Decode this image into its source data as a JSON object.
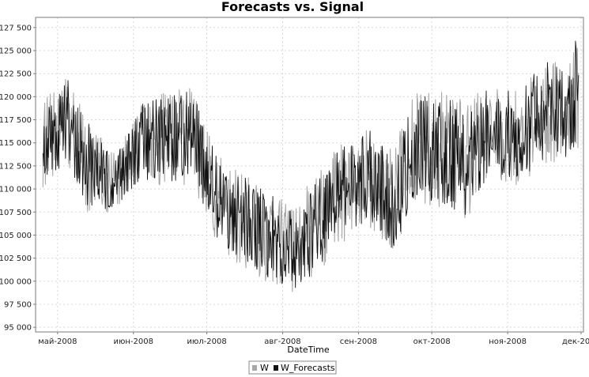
{
  "chart_data": {
    "type": "line",
    "title": "Forecasts vs. Signal",
    "xlabel": "DateTime",
    "ylabel": "",
    "x_ticks": [
      "май-2008",
      "июн-2008",
      "июл-2008",
      "авг-2008",
      "сен-2008",
      "окт-2008",
      "ноя-2008",
      "дек-2008"
    ],
    "xlim": [
      "2008-04-22",
      "2008-12-02"
    ],
    "y_ticks": [
      "95 000",
      "97 500",
      "100 000",
      "102 500",
      "105 000",
      "107 500",
      "110 000",
      "112 500",
      "115 000",
      "117 500",
      "120 000",
      "122 500",
      "125 000",
      "127 500"
    ],
    "ylim": [
      94500,
      128600
    ],
    "grid": true,
    "legend_position": "bottom-center",
    "series": [
      {
        "name": "W",
        "color": "#a8a8a8",
        "x": [
          "2008-04-25",
          "2008-05-05",
          "2008-05-15",
          "2008-05-25",
          "2008-06-05",
          "2008-06-15",
          "2008-06-25",
          "2008-07-05",
          "2008-07-15",
          "2008-07-25",
          "2008-08-05",
          "2008-08-15",
          "2008-08-25",
          "2008-09-05",
          "2008-09-15",
          "2008-09-25",
          "2008-10-05",
          "2008-10-15",
          "2008-10-25",
          "2008-11-05",
          "2008-11-15",
          "2008-11-25",
          "2008-11-30"
        ],
        "envelope_low": [
          110000,
          112500,
          106500,
          107500,
          110500,
          110000,
          110500,
          104000,
          101500,
          100000,
          98500,
          100500,
          104000,
          106000,
          103000,
          108500,
          108000,
          106500,
          111500,
          110000,
          112500,
          113000,
          114000
        ],
        "envelope_high": [
          119500,
          122500,
          117000,
          114500,
          120000,
          120500,
          121500,
          114000,
          112000,
          110500,
          108500,
          112000,
          115000,
          117000,
          114500,
          121000,
          120500,
          119500,
          121500,
          121000,
          124500,
          123500,
          126000
        ]
      },
      {
        "name": "W_Forecasts",
        "color": "#111111",
        "x": [
          "2008-04-25",
          "2008-05-05",
          "2008-05-15",
          "2008-05-25",
          "2008-06-05",
          "2008-06-15",
          "2008-06-25",
          "2008-07-05",
          "2008-07-15",
          "2008-07-25",
          "2008-08-05",
          "2008-08-15",
          "2008-08-25",
          "2008-09-05",
          "2008-09-15",
          "2008-09-25",
          "2008-10-05",
          "2008-10-15",
          "2008-10-25",
          "2008-11-05",
          "2008-11-15",
          "2008-11-25",
          "2008-11-30"
        ],
        "envelope_low": [
          110500,
          113000,
          107000,
          108000,
          111000,
          110500,
          111000,
          104500,
          102000,
          100500,
          99000,
          101000,
          104500,
          106500,
          103500,
          109000,
          108500,
          107000,
          112000,
          110500,
          113000,
          113500,
          114500
        ],
        "envelope_high": [
          119000,
          122000,
          116500,
          114000,
          119500,
          120000,
          121000,
          113500,
          111500,
          110000,
          108000,
          111500,
          114500,
          116500,
          114000,
          120500,
          120000,
          119000,
          121000,
          120500,
          124000,
          123000,
          127500
        ]
      }
    ]
  }
}
